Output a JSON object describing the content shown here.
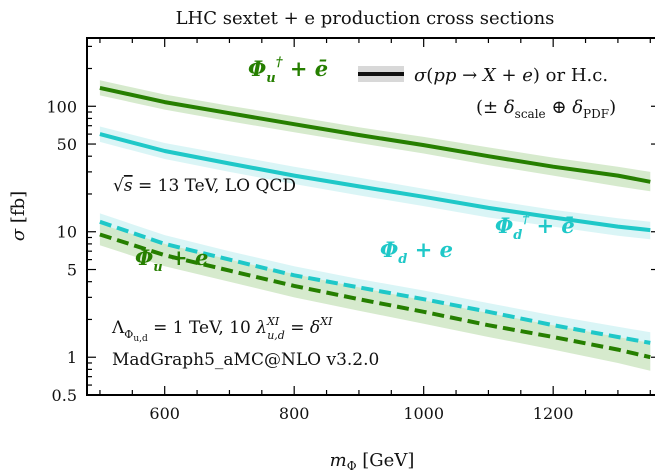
{
  "chart_data": {
    "type": "line",
    "title": "LHC sextet + e production cross sections",
    "xlabel": "m_Φ [GeV]",
    "ylabel": "σ [fb]",
    "xlim": [
      480,
      1365
    ],
    "ylim": [
      0.5,
      350
    ],
    "yscale": "log",
    "xticks": [
      600,
      800,
      1000,
      1200
    ],
    "yticks": [
      0.5,
      1,
      5,
      10,
      50,
      100
    ],
    "ytick_labels": [
      "0.5",
      "1",
      "5",
      "10",
      "50",
      "100"
    ],
    "series": [
      {
        "name": "Φ_u† + ē",
        "color": "#267f00",
        "band_color": "#cfe6c4",
        "style": "solid",
        "x": [
          500,
          600,
          700,
          800,
          900,
          1000,
          1100,
          1200,
          1300,
          1350
        ],
        "y": [
          140,
          108,
          88,
          72,
          59,
          49,
          40,
          33,
          28,
          25
        ],
        "band_lower": [
          122,
          94,
          76,
          62,
          51,
          42,
          34,
          28,
          23,
          21
        ],
        "band_upper": [
          161,
          124,
          101,
          83,
          68,
          57,
          47,
          39,
          33,
          30
        ]
      },
      {
        "name": "Φ_d† + ē",
        "color": "#1fc8c8",
        "band_color": "#d3f3f5",
        "style": "solid",
        "x": [
          500,
          600,
          700,
          800,
          900,
          1000,
          1100,
          1200,
          1300,
          1350
        ],
        "y": [
          60,
          44,
          35,
          28,
          23,
          19,
          15.5,
          13,
          11,
          10.3
        ],
        "band_lower": [
          52,
          38,
          30,
          24,
          19.5,
          16,
          13,
          11,
          9.3,
          8.7
        ],
        "band_upper": [
          69,
          51,
          41,
          33,
          27,
          22,
          18,
          15,
          12.8,
          12
        ]
      },
      {
        "name": "Φ_d + e",
        "color": "#1fc8c8",
        "band_color": "#d3f3f5",
        "style": "dashed",
        "x": [
          500,
          600,
          700,
          800,
          900,
          1000,
          1100,
          1200,
          1300,
          1350
        ],
        "y": [
          12,
          8.0,
          6.0,
          4.5,
          3.6,
          2.9,
          2.3,
          1.8,
          1.45,
          1.3
        ],
        "band_lower": [
          10.2,
          6.8,
          5.0,
          3.8,
          3.0,
          2.4,
          1.9,
          1.5,
          1.2,
          1.05
        ],
        "band_upper": [
          14,
          9.4,
          7.0,
          5.3,
          4.2,
          3.4,
          2.7,
          2.15,
          1.75,
          1.58
        ]
      },
      {
        "name": "Φ_u + e",
        "color": "#267f00",
        "band_color": "#cfe6c4",
        "style": "dashed",
        "x": [
          500,
          600,
          700,
          800,
          900,
          1000,
          1100,
          1200,
          1300,
          1350
        ],
        "y": [
          9.5,
          6.5,
          4.9,
          3.7,
          2.9,
          2.3,
          1.8,
          1.45,
          1.15,
          1.0
        ],
        "band_lower": [
          7.8,
          5.3,
          4.0,
          3.0,
          2.35,
          1.85,
          1.45,
          1.15,
          0.9,
          0.78
        ],
        "band_upper": [
          11.5,
          8.0,
          6.0,
          4.6,
          3.6,
          2.85,
          2.25,
          1.8,
          1.45,
          1.3
        ]
      }
    ],
    "legend": {
      "line_label": "σ(pp → X + e) or H.c.",
      "band_label": "(± δ_scale ⊕ δ_PDF)",
      "placement": "top-right"
    },
    "annotations": {
      "energy": "√s = 13 TeV,  LO QCD",
      "lambda": "Λ_Φu,d = 1 TeV,  10 λ^XI_u,d = δ^XI",
      "generator": "MadGraph5_aMC@NLO v3.2.0"
    }
  }
}
